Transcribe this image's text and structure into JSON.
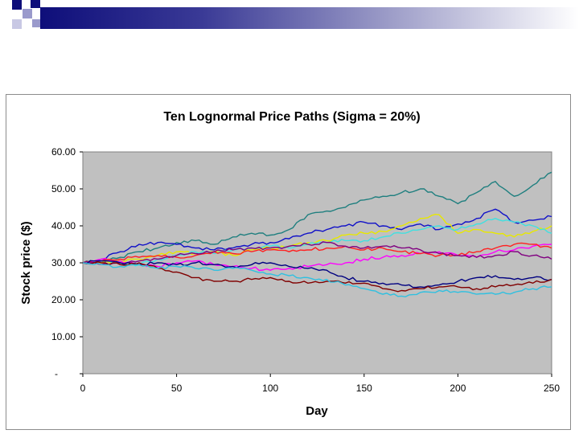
{
  "chart_data": {
    "type": "line",
    "title": "Ten Lognormal Price Paths (Sigma = 20%)",
    "xlabel": "Day",
    "ylabel": "Stock price ($)",
    "xlim": [
      0,
      250
    ],
    "ylim": [
      0,
      60
    ],
    "x_ticks": [
      "0",
      "50",
      "100",
      "150",
      "200",
      "250"
    ],
    "y_ticks": [
      "-",
      "10.00",
      "20.00",
      "30.00",
      "40.00",
      "50.00",
      "60.00"
    ],
    "grid": false,
    "legend": "none",
    "plot_background": "#c0c0c0",
    "x": [
      0,
      10,
      20,
      30,
      40,
      50,
      60,
      70,
      80,
      90,
      100,
      110,
      120,
      130,
      140,
      150,
      160,
      170,
      180,
      190,
      200,
      210,
      220,
      230,
      240,
      250
    ],
    "series": [
      {
        "color": "#1f7f7f",
        "values": [
          30,
          30.5,
          31.5,
          33,
          34,
          35.5,
          36,
          35,
          37,
          38,
          37.5,
          39,
          43,
          44,
          45,
          47,
          48,
          49,
          50,
          48,
          46,
          49,
          52,
          48,
          51,
          54.5
        ]
      },
      {
        "color": "#1010c8",
        "values": [
          30,
          31,
          33,
          35,
          35.5,
          35,
          34,
          33.5,
          34,
          35,
          35.5,
          36.5,
          38,
          39,
          40,
          41,
          40,
          39,
          40.5,
          39,
          40.5,
          42,
          44.5,
          41,
          41.5,
          42.5
        ]
      },
      {
        "color": "#e8e800",
        "values": [
          30,
          30,
          30.5,
          31,
          32,
          33,
          32.5,
          33,
          32,
          33.5,
          34,
          34.5,
          35.5,
          36,
          37.5,
          38,
          38.5,
          40,
          42,
          43,
          38,
          39,
          38,
          37,
          38.5,
          40
        ]
      },
      {
        "color": "#40e0e0",
        "values": [
          30,
          30.5,
          30,
          29.5,
          31,
          32,
          33,
          32.5,
          33.5,
          34,
          34.5,
          34,
          35,
          35.5,
          36,
          36,
          37,
          38,
          39,
          40,
          39,
          40.5,
          42,
          41,
          40,
          38
        ]
      },
      {
        "color": "#ff00ff",
        "values": [
          30,
          31,
          30.5,
          29.5,
          29,
          30,
          30.5,
          29.5,
          29,
          28.5,
          28,
          28.5,
          29,
          29.5,
          30,
          31,
          31.5,
          32,
          32.5,
          33,
          32,
          31.5,
          33,
          33.5,
          34.5,
          35
        ]
      },
      {
        "color": "#ff2020",
        "values": [
          30,
          30.5,
          31,
          31.5,
          32,
          31.5,
          32,
          33,
          32.5,
          33,
          33.5,
          33,
          33.5,
          34,
          34.5,
          33.5,
          34,
          33,
          32.5,
          32,
          32,
          33,
          34,
          35,
          35,
          34
        ]
      },
      {
        "color": "#800080",
        "values": [
          30,
          29.5,
          30,
          30.5,
          31,
          32,
          32.5,
          33,
          33.5,
          34,
          34,
          34.5,
          35,
          35.5,
          34.5,
          34,
          34.5,
          34,
          33.5,
          32.5,
          32,
          31.5,
          32,
          33,
          32,
          31
        ]
      },
      {
        "color": "#000080",
        "values": [
          30,
          30.5,
          30,
          29.5,
          30,
          29.5,
          30,
          29.5,
          29,
          29.5,
          30,
          29,
          28.5,
          28,
          26,
          25,
          24.5,
          24,
          23.5,
          24,
          25,
          26,
          26.5,
          25.5,
          26,
          25.5
        ]
      },
      {
        "color": "#800000",
        "values": [
          30,
          30,
          29.5,
          30,
          28.5,
          27.5,
          26,
          25,
          25,
          25.5,
          26,
          25,
          24.5,
          25,
          24.5,
          24.5,
          23,
          22.5,
          23,
          23.5,
          23.5,
          23,
          23.5,
          24,
          24.5,
          25.5
        ]
      },
      {
        "color": "#30c0e0",
        "values": [
          30,
          29.5,
          29,
          29.5,
          28.5,
          29,
          28.5,
          28,
          28.5,
          28,
          27,
          26.5,
          26,
          25.5,
          24,
          23,
          21.5,
          21,
          22,
          22.5,
          22,
          21.5,
          21.5,
          22,
          23,
          23.5
        ]
      }
    ]
  }
}
